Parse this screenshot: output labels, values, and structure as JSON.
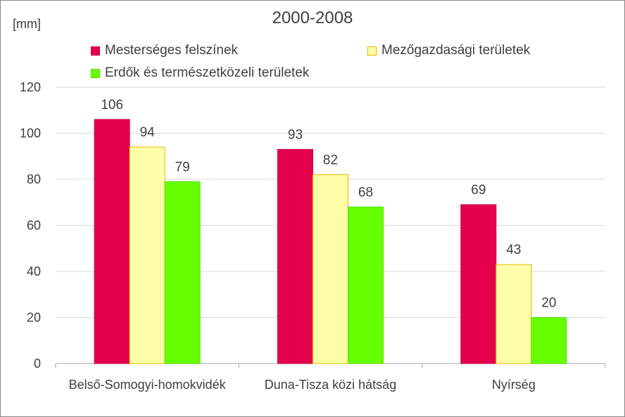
{
  "chart_data": {
    "type": "bar",
    "title": "2000-2008",
    "ylabel": "[mm]",
    "xlabel": "",
    "categories": [
      "Belső-Somogyi-homokvidék",
      "Duna-Tisza közi hátság",
      "Nyírség"
    ],
    "series": [
      {
        "name": "Mesterséges felszínek",
        "values": [
          106,
          93,
          69
        ],
        "color": "#E4004C",
        "border": "#C80040"
      },
      {
        "name": "Mezőgazdasági területek",
        "values": [
          94,
          82,
          43
        ],
        "color": "#FFFFA8",
        "border": "#E6B800"
      },
      {
        "name": "Erdők és természetközeli területek",
        "values": [
          79,
          68,
          20
        ],
        "color": "#66FF00",
        "border": "#55DD00"
      }
    ],
    "ylim": [
      0,
      120
    ],
    "yticks": [
      0,
      20,
      40,
      60,
      80,
      100,
      120
    ],
    "grid": true,
    "legend_position": "top"
  }
}
